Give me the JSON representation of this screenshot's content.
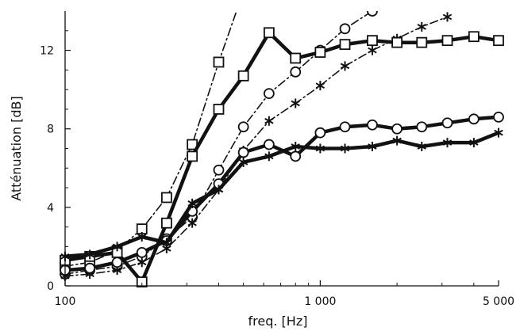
{
  "chart_data": {
    "type": "line",
    "title": "",
    "xlabel": "freq. [Hz]",
    "ylabel": "Atténuation [dB]",
    "xscale": "log",
    "xlim": [
      100,
      5000
    ],
    "ylim": [
      0,
      14
    ],
    "x_ticks": [
      100,
      1000,
      5000
    ],
    "x_tick_labels": [
      "100",
      "1 000",
      "5 000"
    ],
    "y_ticks": [
      0,
      4,
      8,
      12
    ],
    "y_tick_labels": [
      "0",
      "4",
      "8",
      "12"
    ],
    "grid": false,
    "legend": "none",
    "series": [
      {
        "marker": "square",
        "style": "solid-thick",
        "x": [
          100,
          125,
          160,
          200,
          250,
          315,
          400,
          500,
          630,
          800,
          1000,
          1250,
          1600,
          2000,
          2500,
          3150,
          4000,
          5000
        ],
        "y": [
          1.3,
          1.5,
          1.7,
          0.2,
          3.2,
          6.6,
          9.0,
          10.7,
          12.9,
          11.6,
          11.9,
          12.3,
          12.5,
          12.4,
          12.4,
          12.5,
          12.7,
          12.5
        ]
      },
      {
        "marker": "circle",
        "style": "solid-thick",
        "x": [
          100,
          125,
          160,
          200,
          250,
          315,
          400,
          500,
          630,
          800,
          1000,
          1250,
          1600,
          2000,
          2500,
          3150,
          4000,
          5000
        ],
        "y": [
          0.8,
          0.9,
          1.2,
          1.7,
          2.3,
          3.8,
          5.2,
          6.8,
          7.2,
          6.6,
          7.8,
          8.1,
          8.2,
          8.0,
          8.1,
          8.3,
          8.5,
          8.6
        ]
      },
      {
        "marker": "asterisk",
        "style": "solid-thick",
        "x": [
          100,
          125,
          160,
          200,
          250,
          315,
          400,
          500,
          630,
          800,
          1000,
          1250,
          1600,
          2000,
          2500,
          3150,
          4000,
          5000
        ],
        "y": [
          1.5,
          1.6,
          2.0,
          2.5,
          2.2,
          4.2,
          4.9,
          6.3,
          6.6,
          7.1,
          7.0,
          7.0,
          7.1,
          7.4,
          7.1,
          7.3,
          7.3,
          7.8
        ]
      },
      {
        "marker": "square",
        "style": "dash-dot",
        "x": [
          100,
          125,
          160,
          200,
          250,
          315,
          400,
          500
        ],
        "y": [
          1.0,
          1.2,
          1.8,
          2.9,
          4.5,
          7.2,
          11.4,
          15.0
        ]
      },
      {
        "marker": "circle",
        "style": "dash-dot",
        "x": [
          100,
          125,
          160,
          200,
          250,
          315,
          400,
          500,
          630,
          800,
          1000,
          1250,
          1600
        ],
        "y": [
          0.6,
          0.8,
          1.0,
          1.5,
          2.4,
          3.5,
          5.9,
          8.1,
          9.8,
          10.9,
          12.0,
          13.1,
          14.0
        ]
      },
      {
        "marker": "asterisk",
        "style": "dash-dot",
        "x": [
          100,
          125,
          160,
          200,
          250,
          315,
          400,
          500,
          630,
          800,
          1000,
          1250,
          1600,
          2000,
          2500,
          3150
        ],
        "y": [
          0.5,
          0.6,
          0.8,
          1.2,
          1.9,
          3.2,
          4.9,
          6.9,
          8.4,
          9.3,
          10.2,
          11.2,
          12.0,
          12.6,
          13.2,
          13.7
        ]
      }
    ]
  }
}
